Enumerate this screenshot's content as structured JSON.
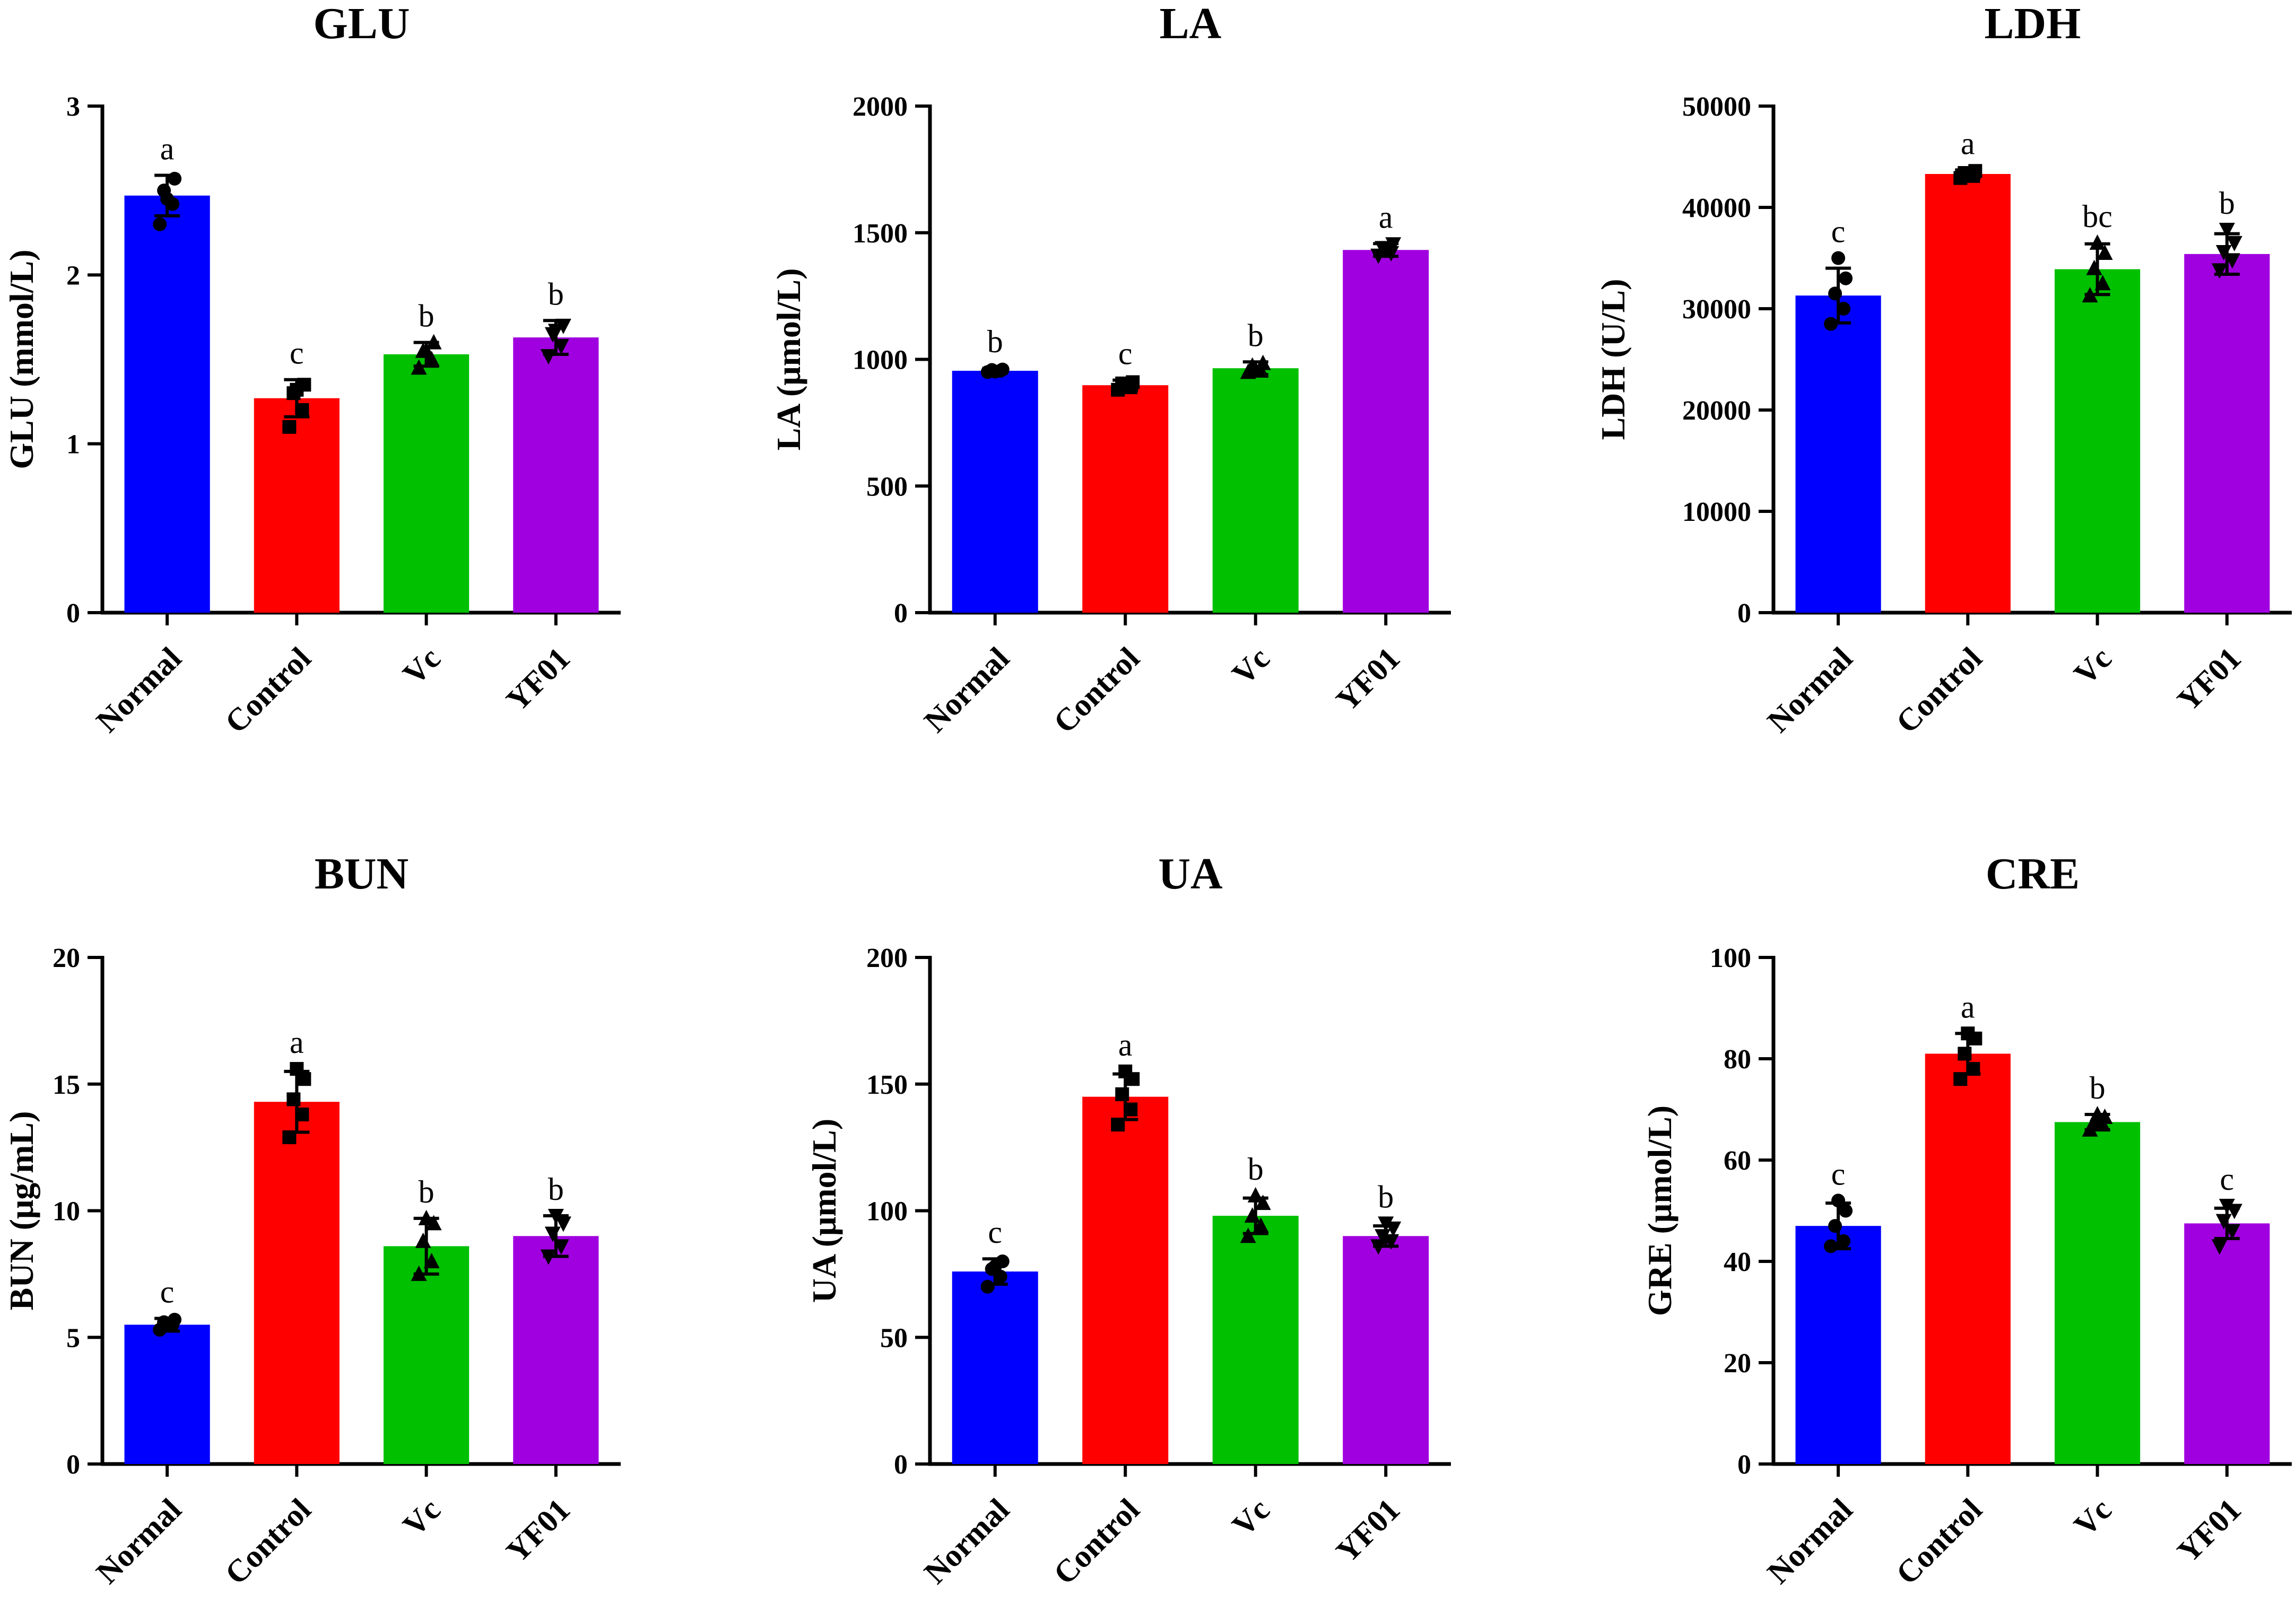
{
  "colors": {
    "Normal": "#0000ff",
    "Control": "#ff0000",
    "Vc": "#00c000",
    "YF01": "#a000e0"
  },
  "chart_data": [
    {
      "type": "bar",
      "title": "GLU",
      "ylabel": "GLU (mmol/L)",
      "xlabel": "",
      "categories": [
        "Normal",
        "Control",
        "Vc",
        "YF01"
      ],
      "values": [
        2.47,
        1.27,
        1.53,
        1.63
      ],
      "errors": [
        0.12,
        0.11,
        0.07,
        0.1
      ],
      "letters": [
        "a",
        "c",
        "b",
        "b"
      ],
      "points": [
        [
          2.3,
          2.42,
          2.5,
          2.57,
          2.45
        ],
        [
          1.1,
          1.2,
          1.3,
          1.35,
          1.32
        ],
        [
          1.45,
          1.5,
          1.55,
          1.6,
          1.55
        ],
        [
          1.52,
          1.58,
          1.65,
          1.7,
          1.67
        ]
      ],
      "markers": [
        "circle",
        "square",
        "triangle",
        "triangle-down"
      ],
      "ylim": [
        0,
        3
      ],
      "yticks": [
        0,
        1,
        2,
        3
      ]
    },
    {
      "type": "bar",
      "title": "LA",
      "ylabel": "LA (μmol/L)",
      "xlabel": "",
      "categories": [
        "Normal",
        "Control",
        "Vc",
        "YF01"
      ],
      "values": [
        955,
        898,
        965,
        1432
      ],
      "errors": [
        10,
        20,
        25,
        25
      ],
      "letters": [
        "b",
        "c",
        "b",
        "a"
      ],
      "points": [
        [
          950,
          955,
          958,
          960,
          952
        ],
        [
          880,
          890,
          905,
          910,
          895
        ],
        [
          950,
          955,
          975,
          985,
          960
        ],
        [
          1410,
          1420,
          1440,
          1455,
          1435
        ]
      ],
      "markers": [
        "circle",
        "square",
        "triangle",
        "triangle-down"
      ],
      "ylim": [
        0,
        2000
      ],
      "yticks": [
        0,
        500,
        1000,
        1500,
        2000
      ]
    },
    {
      "type": "bar",
      "title": "LDH",
      "ylabel": "LDH (U/L)",
      "xlabel": "",
      "categories": [
        "Normal",
        "Control",
        "Vc",
        "YF01"
      ],
      "values": [
        31300,
        43300,
        33900,
        35400
      ],
      "errors": [
        2700,
        400,
        2500,
        2000
      ],
      "letters": [
        "c",
        "a",
        "bc",
        "b"
      ],
      "points": [
        [
          28500,
          30000,
          31500,
          33000,
          35000
        ],
        [
          42900,
          43100,
          43400,
          43600,
          43300
        ],
        [
          31300,
          32500,
          34000,
          35500,
          36500
        ],
        [
          33800,
          34800,
          35600,
          36500,
          37800
        ]
      ],
      "markers": [
        "circle",
        "square",
        "triangle",
        "triangle-down"
      ],
      "ylim": [
        0,
        50000
      ],
      "yticks": [
        0,
        10000,
        20000,
        30000,
        40000,
        50000
      ]
    },
    {
      "type": "bar",
      "title": "BUN",
      "ylabel": "BUN (μg/mL)",
      "xlabel": "",
      "categories": [
        "Normal",
        "Control",
        "Vc",
        "YF01"
      ],
      "values": [
        5.5,
        14.3,
        8.6,
        9.0
      ],
      "errors": [
        0.25,
        1.2,
        1.1,
        0.8
      ],
      "letters": [
        "c",
        "a",
        "b",
        "b"
      ],
      "points": [
        [
          5.3,
          5.5,
          5.6,
          5.7,
          5.5
        ],
        [
          12.9,
          13.8,
          14.4,
          15.2,
          15.6
        ],
        [
          7.5,
          8.0,
          8.8,
          9.5,
          9.7
        ],
        [
          8.2,
          8.6,
          9.1,
          9.5,
          9.8
        ]
      ],
      "markers": [
        "circle",
        "square",
        "triangle",
        "triangle-down"
      ],
      "ylim": [
        0,
        20
      ],
      "yticks": [
        0,
        5,
        10,
        15,
        20
      ]
    },
    {
      "type": "bar",
      "title": "UA",
      "ylabel": "UA (μmol/L)",
      "xlabel": "",
      "categories": [
        "Normal",
        "Control",
        "Vc",
        "YF01"
      ],
      "values": [
        76,
        145,
        98,
        90
      ],
      "errors": [
        5,
        9,
        7,
        4
      ],
      "letters": [
        "c",
        "a",
        "b",
        "b"
      ],
      "points": [
        [
          70,
          74,
          77,
          80,
          78
        ],
        [
          134,
          140,
          146,
          152,
          155
        ],
        [
          90,
          94,
          98,
          103,
          106
        ],
        [
          86,
          88,
          90,
          93,
          95
        ]
      ],
      "markers": [
        "circle",
        "square",
        "triangle",
        "triangle-down"
      ],
      "ylim": [
        0,
        200
      ],
      "yticks": [
        0,
        50,
        100,
        150,
        200
      ]
    },
    {
      "type": "bar",
      "title": "CRE",
      "ylabel": "GRE (μmol/L)",
      "xlabel": "",
      "categories": [
        "Normal",
        "Control",
        "Vc",
        "YF01"
      ],
      "values": [
        47,
        81,
        67.5,
        47.5
      ],
      "errors": [
        4.5,
        4,
        1.5,
        3
      ],
      "letters": [
        "c",
        "a",
        "b",
        "c"
      ],
      "points": [
        [
          43,
          44,
          47,
          50,
          52
        ],
        [
          76,
          78,
          81,
          84,
          85
        ],
        [
          66,
          67,
          67.5,
          68.5,
          69
        ],
        [
          43,
          46,
          48,
          50,
          51
        ]
      ],
      "markers": [
        "circle",
        "square",
        "triangle",
        "triangle-down"
      ],
      "ylim": [
        0,
        100
      ],
      "yticks": [
        0,
        20,
        40,
        60,
        80,
        100
      ]
    }
  ]
}
